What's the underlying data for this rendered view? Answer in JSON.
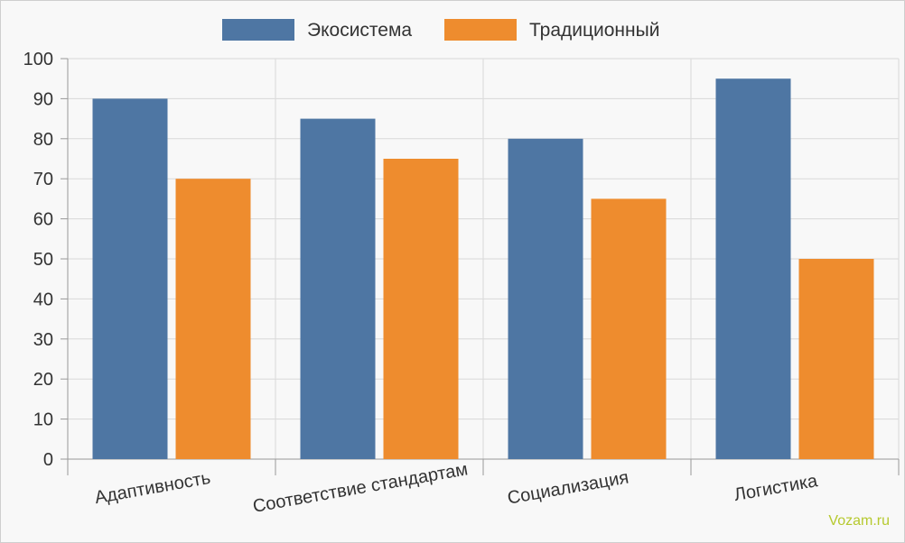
{
  "chart_data": {
    "type": "bar",
    "categories": [
      "Адаптивность",
      "Соответствие стандартам",
      "Социализация",
      "Логистика"
    ],
    "series": [
      {
        "name": "Экосистема",
        "values": [
          90,
          85,
          80,
          95
        ],
        "color": "#4e76a3"
      },
      {
        "name": "Традиционный",
        "values": [
          70,
          75,
          65,
          50
        ],
        "color": "#ee8c2e"
      }
    ],
    "ylim": [
      0,
      100
    ],
    "yticks": [
      0,
      10,
      20,
      30,
      40,
      50,
      60,
      70,
      80,
      90,
      100
    ],
    "grid": true,
    "legend_position": "top-center"
  },
  "watermark": "Vozam.ru"
}
